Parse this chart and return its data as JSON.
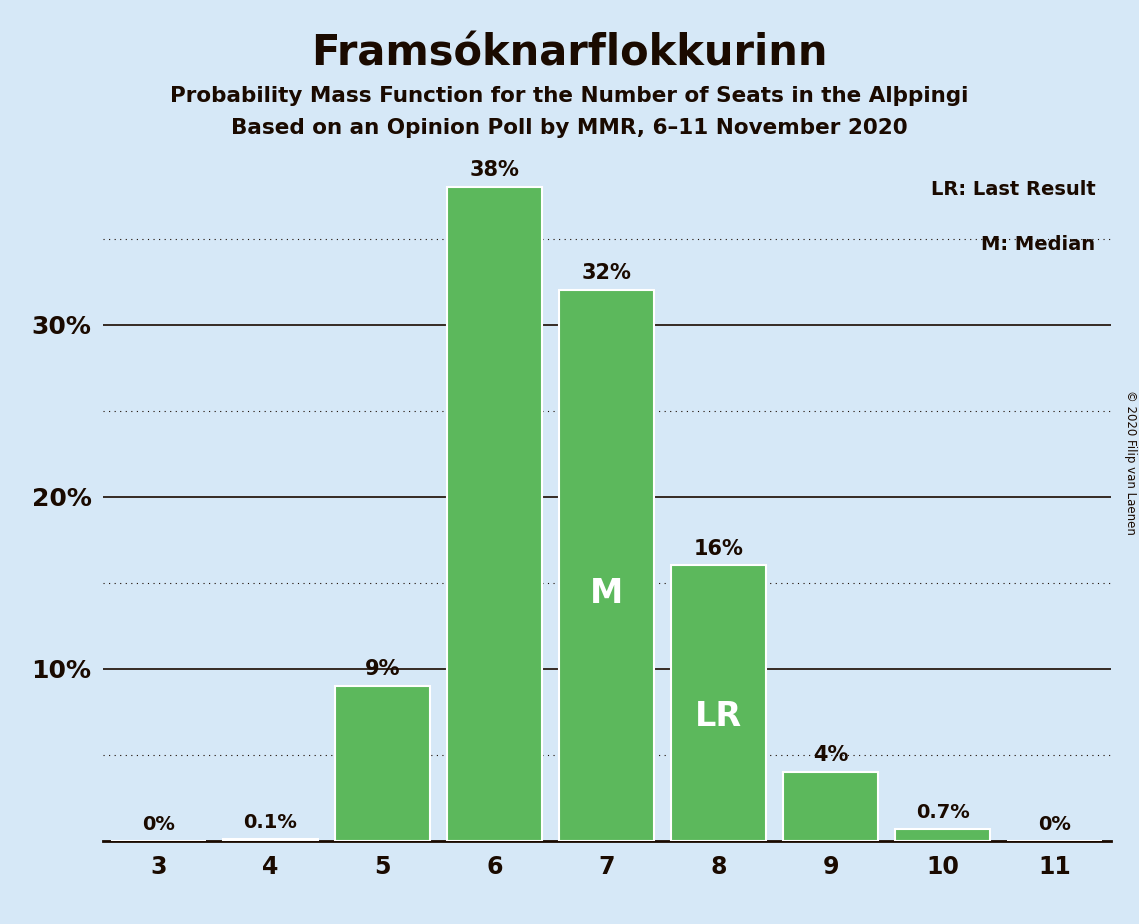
{
  "title": "Framsóknarflokkurinn",
  "subtitle1": "Probability Mass Function for the Number of Seats in the Alþpingi",
  "subtitle2": "Based on an Opinion Poll by MMR, 6–11 November 2020",
  "copyright": "© 2020 Filip van Laenen",
  "legend_lr": "LR: Last Result",
  "legend_m": "M: Median",
  "categories": [
    3,
    4,
    5,
    6,
    7,
    8,
    9,
    10,
    11
  ],
  "values": [
    0.0,
    0.1,
    9.0,
    38.0,
    32.0,
    16.0,
    4.0,
    0.7,
    0.0
  ],
  "bar_labels": [
    "0%",
    "0.1%",
    "9%",
    "38%",
    "32%",
    "16%",
    "4%",
    "0.7%",
    "0%"
  ],
  "bar_color": "#5cb85c",
  "background_color": "#d6e8f7",
  "text_color": "#1a0a00",
  "median_bar_idx": 4,
  "lr_bar_idx": 5,
  "median_label": "M",
  "lr_label": "LR",
  "ylim": [
    0,
    40
  ],
  "major_yticks": [
    10,
    20,
    30
  ],
  "minor_yticks": [
    5,
    15,
    25,
    35
  ],
  "ytick_labels": {
    "10": "10%",
    "20": "20%",
    "30": "30%"
  }
}
